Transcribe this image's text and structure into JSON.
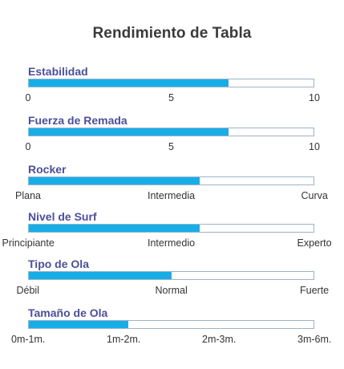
{
  "title": "Rendimiento de Tabla",
  "chart_data": [
    {
      "type": "bar",
      "title": "Estabilidad",
      "value": 7,
      "xlim": [
        0,
        10
      ],
      "tick_labels": [
        "0",
        "5",
        "10"
      ]
    },
    {
      "type": "bar",
      "title": "Fuerza de Remada",
      "value": 7,
      "xlim": [
        0,
        10
      ],
      "tick_labels": [
        "0",
        "5",
        "10"
      ]
    },
    {
      "type": "bar",
      "title": "Rocker",
      "value": 6,
      "xlim": [
        0,
        10
      ],
      "tick_labels": [
        "Plana",
        "Intermedia",
        "Curva"
      ]
    },
    {
      "type": "bar",
      "title": "Nivel de Surf",
      "value": 6,
      "xlim": [
        0,
        10
      ],
      "tick_labels": [
        "Principiante",
        "Intermedio",
        "Experto"
      ]
    },
    {
      "type": "bar",
      "title": "Tipo de Ola",
      "value": 5,
      "xlim": [
        0,
        10
      ],
      "tick_labels": [
        "Débil",
        "Normal",
        "Fuerte"
      ]
    },
    {
      "type": "bar",
      "title": "Tamaño de Ola",
      "value": 3.5,
      "xlim": [
        0,
        10
      ],
      "tick_labels": [
        "0m-1m.",
        "1m-2m.",
        "2m-3m.",
        "3m-6m."
      ]
    }
  ],
  "colors": {
    "bar_fill": "#17aee7",
    "bar_border": "#9fb3c6",
    "label": "#4b4f9a",
    "title": "#3a3a3a"
  }
}
